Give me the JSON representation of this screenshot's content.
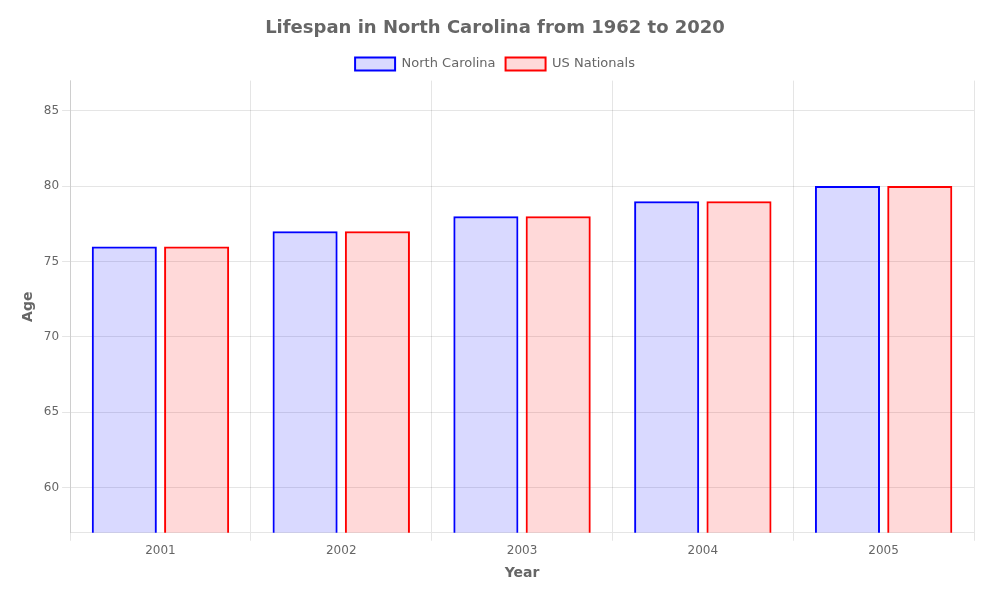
{
  "chart_data": {
    "type": "bar",
    "title": "Lifespan in North Carolina from 1962 to 2020",
    "xlabel": "Year",
    "ylabel": "Age",
    "categories": [
      "2001",
      "2002",
      "2003",
      "2004",
      "2005"
    ],
    "series": [
      {
        "name": "North Carolina",
        "color": "#0000ff",
        "values": [
          76,
          77,
          78,
          79,
          80
        ]
      },
      {
        "name": "US Nationals",
        "color": "#ff0000",
        "values": [
          76,
          77,
          78,
          79,
          80
        ]
      }
    ],
    "ylim": [
      57,
      87
    ],
    "yticks": [
      60,
      65,
      70,
      75,
      80,
      85
    ],
    "grid": true,
    "legend": "top"
  }
}
